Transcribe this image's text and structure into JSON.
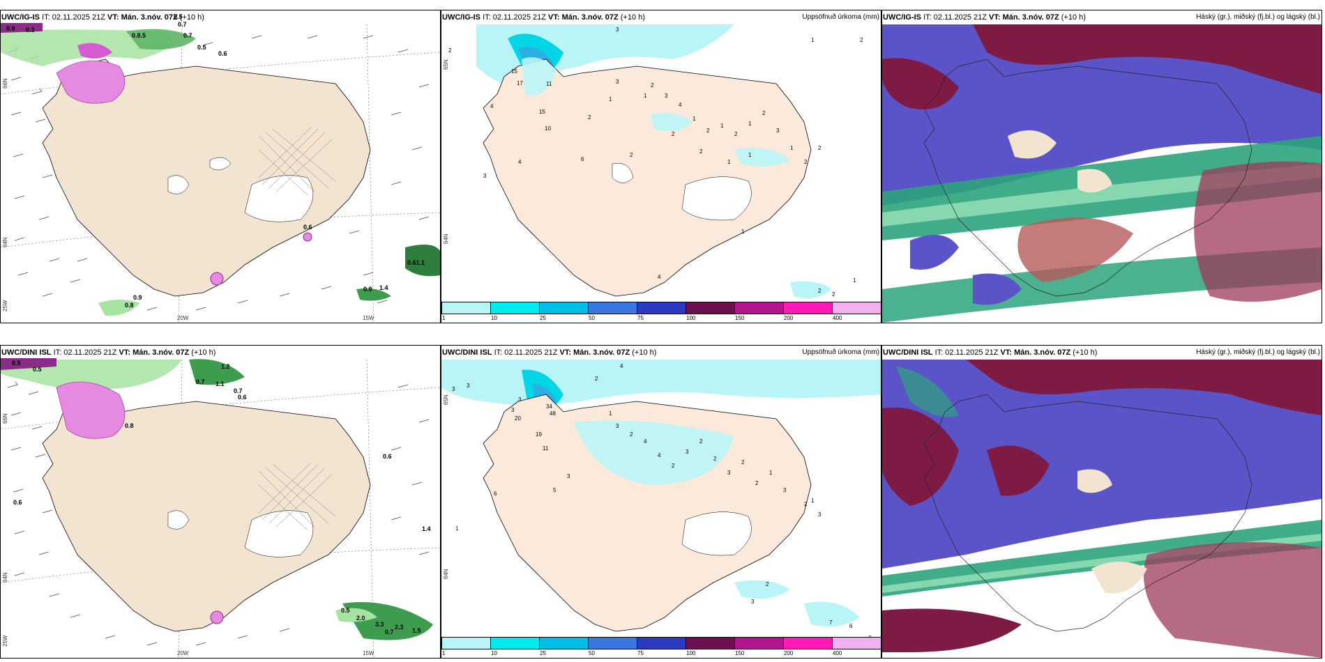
{
  "rows": [
    {
      "wind": {
        "model": "UWC/IG-IS",
        "it": "IT: 02.11.2025 21Z",
        "vt": "VT: Mán. 3.nóv. 07Z",
        "lead": "(+10 h)",
        "values": [
          "0.9",
          "0.3",
          "0.5",
          "0.7",
          "0.8.5",
          "0.7",
          "0.5",
          "0.6",
          "0.6",
          "0.9",
          "0.8",
          "0.61.1",
          "0.9",
          "1.4"
        ],
        "lat": [
          "66N",
          "64N",
          "25W"
        ],
        "lon": [
          "20W",
          "15W"
        ]
      },
      "precip": {
        "model": "UWC/IG-IS",
        "it": "IT: 02.11.2025 21Z",
        "vt": "VT: Mán. 3.nóv. 07Z",
        "lead": "(+10 h)",
        "right": "Uppsöfnuð úrkoma (mm)",
        "values": [
          "2",
          "3",
          "15",
          "17",
          "11",
          "4",
          "15",
          "10",
          "2",
          "6",
          "2",
          "3",
          "4",
          "3",
          "1",
          "1",
          "2",
          "3",
          "4",
          "1",
          "2",
          "1",
          "2",
          "1",
          "2",
          "3",
          "1",
          "2",
          "2",
          "1",
          "1",
          "2",
          "2",
          "1",
          "4",
          "2",
          "2",
          "1",
          "1",
          "1",
          "2"
        ],
        "lat": [
          "65N",
          "64N"
        ]
      },
      "cloud": {
        "model": "UWC/IG-IS",
        "it": "IT: 02.11.2025 21Z",
        "vt": "VT: Mán. 3.nóv. 07Z",
        "lead": "(+10 h)",
        "right": "Háský (gr.), miðský (fj.bl.) og lágský (bl.)"
      }
    },
    {
      "wind": {
        "model": "UWC/DINI ISL",
        "it": "IT: 02.11.2025 21Z",
        "vt": "VT: Mán. 3.nóv. 07Z",
        "lead": "(+10 h)",
        "values": [
          "0.5",
          "0.5",
          "1.2",
          "0.7",
          "1.1",
          "0.7",
          "0.6",
          "0.8",
          "0.6",
          "0.6",
          "1.4",
          "0.5",
          "2.0",
          "3.3",
          "2.3",
          "0.7",
          "1.5"
        ],
        "lat": [
          "66N",
          "64N",
          "25W"
        ],
        "lon": [
          "20W",
          "15W"
        ]
      },
      "precip": {
        "model": "UWC/DINI ISL",
        "it": "IT: 02.11.2025 21Z",
        "vt": "VT: Mán. 3.nóv. 07Z",
        "lead": "(+10 h)",
        "right": "Uppsöfnuð úrkoma (mm)",
        "values": [
          "3",
          "4",
          "3",
          "2",
          "3",
          "3",
          "20",
          "34",
          "48",
          "19",
          "11",
          "6",
          "5",
          "3",
          "1",
          "1",
          "3",
          "2",
          "4",
          "4",
          "2",
          "3",
          "2",
          "2",
          "3",
          "2",
          "2",
          "1",
          "3",
          "2",
          "7",
          "6",
          "3",
          "1",
          "3",
          "3",
          "2"
        ],
        "lat": [
          "65N",
          "64N"
        ]
      },
      "cloud": {
        "model": "UWC/DINI ISL",
        "it": "IT: 02.11.2025 21Z",
        "vt": "VT: Mán. 3.nóv. 07Z",
        "lead": "(+10 h)",
        "right": "Háský (gr.), miðský (fj.bl.) og lágský (bl.)"
      }
    }
  ],
  "colorbar": {
    "ticks": [
      "1",
      "10",
      "25",
      "50",
      "75",
      "100",
      "150",
      "200",
      "400"
    ],
    "colors": [
      "#b9f5f7",
      "#00eaf0",
      "#00bde6",
      "#3a78e0",
      "#2b3bc0",
      "#6c1050",
      "#b0168e",
      "#ff1ab8",
      "#f3b0f0"
    ]
  },
  "colors": {
    "land": "#f2e4d0",
    "sea": "#ffffff",
    "green": "#a6e3a0",
    "magenta": "#e58ae0",
    "cyan": "#b9f5f7",
    "maroon": "#7e1b45",
    "indigo": "#5a54c8",
    "teal": "#2ca37c"
  }
}
